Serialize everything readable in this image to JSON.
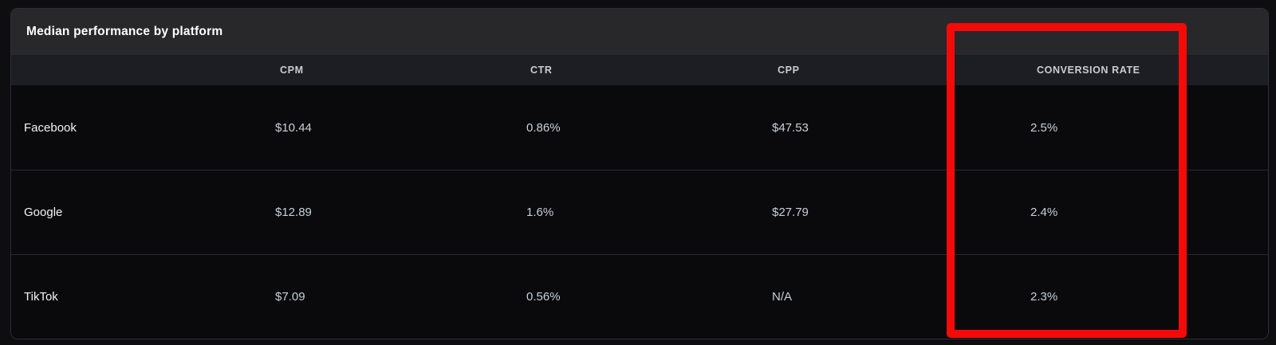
{
  "card": {
    "title": "Median performance by platform"
  },
  "table": {
    "columns": [
      "",
      "CPM",
      "CTR",
      "CPP",
      "CONVERSION RATE"
    ],
    "rows": [
      {
        "platform": "Facebook",
        "cpm": "$10.44",
        "ctr": "0.86%",
        "cpp": "$47.53",
        "conversion_rate": "2.5%"
      },
      {
        "platform": "Google",
        "cpm": "$12.89",
        "ctr": "1.6%",
        "cpp": "$27.79",
        "conversion_rate": "2.4%"
      },
      {
        "platform": "TikTok",
        "cpm": "$7.09",
        "ctr": "0.56%",
        "cpp": "N/A",
        "conversion_rate": "2.3%"
      }
    ]
  },
  "annotation": {
    "type": "highlight-box",
    "target": "conversion-rate-column",
    "color": "#f50a0a"
  },
  "colors": {
    "page_background": "#0e0e10",
    "card_background": "#0a0a0c",
    "card_header_background": "#28282b",
    "table_header_background": "#1d1e23",
    "divider": "#2a2b2f",
    "title_text": "#ffffff",
    "header_text": "#c9ccd2",
    "platform_text": "#f2f3f4",
    "value_text": "#c6d0da",
    "highlight_red": "#f50a0a"
  }
}
